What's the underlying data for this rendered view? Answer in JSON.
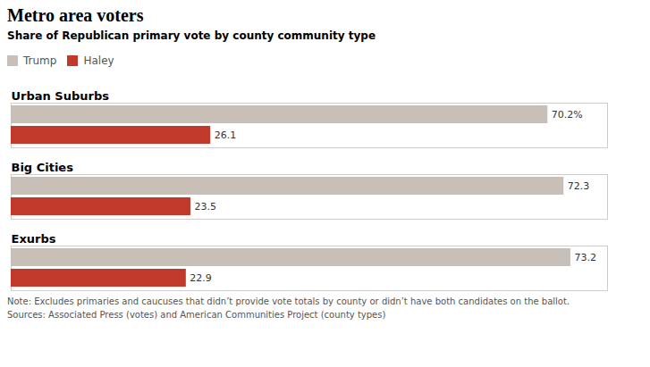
{
  "chart_data": {
    "type": "bar",
    "orientation": "horizontal",
    "title": "Metro area voters",
    "subtitle": "Share of Republican primary vote by county community type",
    "categories": [
      "Urban Suburbs",
      "Big Cities",
      "Exurbs"
    ],
    "series": [
      {
        "name": "Trump",
        "color": "#c8c0b8",
        "values": [
          70.2,
          72.3,
          73.2
        ],
        "value_labels": [
          "70.2%",
          "72.3",
          "73.2"
        ]
      },
      {
        "name": "Haley",
        "color": "#c0392b",
        "values": [
          26.1,
          23.5,
          22.9
        ]
      }
    ],
    "xlim": [
      0,
      78
    ],
    "data_labels": true,
    "tick_labels": false,
    "grid": false,
    "legend": "upper left",
    "annotations": [
      "Note: Excludes primaries and caucuses that didn’t provide vote totals by county or didn’t have both candidates on the ballot.",
      "Sources: Associated Press (votes) and  American Communities Project (county types)"
    ]
  }
}
